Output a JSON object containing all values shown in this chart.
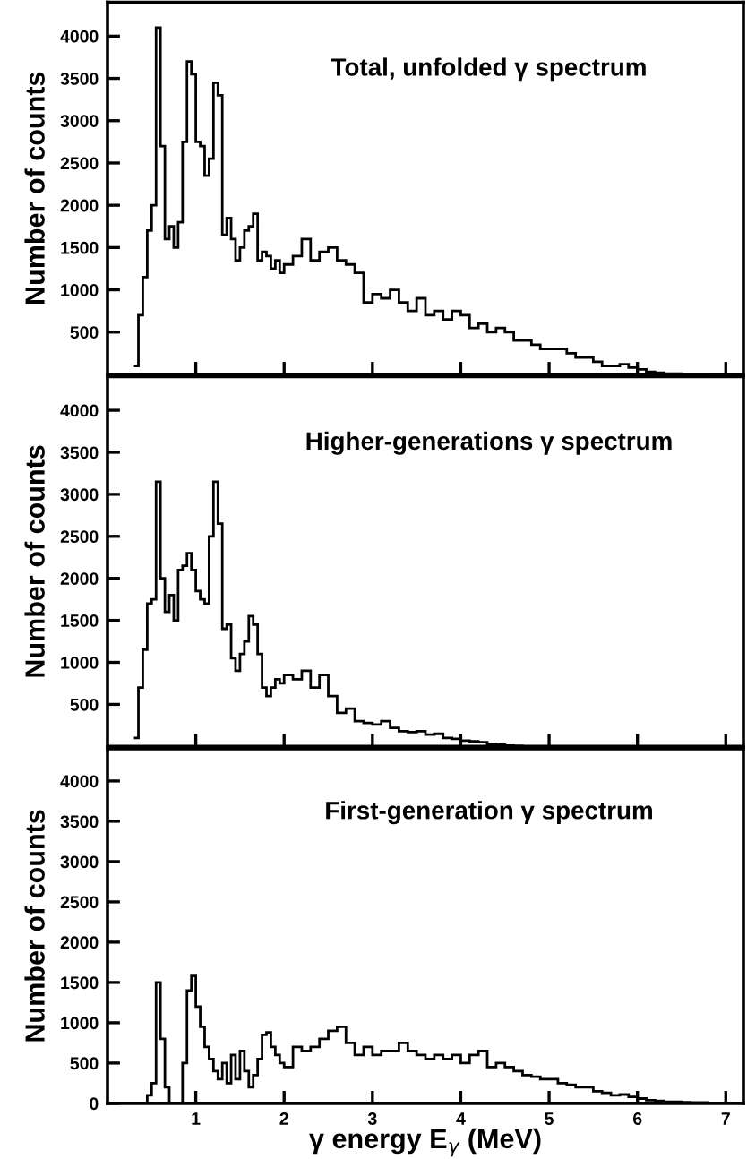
{
  "chart_data": [
    {
      "type": "histogram",
      "title": "Total, unfolded γ spectrum",
      "ylabel": "Number of counts",
      "color": "#000000",
      "xlim": [
        0,
        7.2
      ],
      "xticks": [
        1,
        2,
        3,
        4,
        5,
        6,
        7
      ],
      "ylim": [
        0,
        4400
      ],
      "yticks": [
        500,
        1000,
        1500,
        2000,
        2500,
        3000,
        3500,
        4000
      ],
      "tick_labels": "y",
      "bins": [
        0.3,
        0.35,
        0.4,
        0.45,
        0.5,
        0.55,
        0.6,
        0.65,
        0.7,
        0.75,
        0.8,
        0.85,
        0.9,
        0.95,
        1.0,
        1.05,
        1.1,
        1.15,
        1.2,
        1.25,
        1.3,
        1.35,
        1.4,
        1.45,
        1.5,
        1.55,
        1.6,
        1.65,
        1.7,
        1.75,
        1.8,
        1.85,
        1.9,
        1.95,
        2.0,
        2.1,
        2.2,
        2.3,
        2.4,
        2.5,
        2.6,
        2.7,
        2.8,
        2.9,
        3.0,
        3.1,
        3.2,
        3.3,
        3.4,
        3.5,
        3.6,
        3.7,
        3.8,
        3.9,
        4.0,
        4.1,
        4.2,
        4.3,
        4.4,
        4.5,
        4.6,
        4.7,
        4.8,
        4.9,
        5.0,
        5.1,
        5.2,
        5.3,
        5.4,
        5.5,
        5.6,
        5.7,
        5.8,
        5.9,
        6.0,
        6.1,
        6.2,
        6.3,
        6.4,
        6.5,
        6.6,
        6.7,
        6.8,
        6.9,
        7.0
      ],
      "values": [
        100,
        700,
        1150,
        1700,
        2000,
        4100,
        2700,
        1600,
        1750,
        1500,
        1800,
        2750,
        3700,
        3550,
        2750,
        2700,
        2350,
        2550,
        3450,
        3300,
        1650,
        1850,
        1600,
        1350,
        1500,
        1700,
        1750,
        1900,
        1350,
        1450,
        1400,
        1250,
        1350,
        1200,
        1300,
        1400,
        1600,
        1350,
        1450,
        1500,
        1350,
        1300,
        1200,
        850,
        950,
        900,
        1000,
        850,
        750,
        900,
        700,
        750,
        650,
        750,
        700,
        550,
        600,
        500,
        550,
        500,
        400,
        400,
        350,
        300,
        300,
        300,
        250,
        200,
        200,
        150,
        100,
        100,
        120,
        80,
        60,
        30,
        20,
        10,
        10,
        5,
        5,
        5,
        0,
        0
      ]
    },
    {
      "type": "histogram",
      "title": "Higher-generations γ spectrum",
      "ylabel": "Number of counts",
      "color": "#000000",
      "xlim": [
        0,
        7.2
      ],
      "xticks": [
        1,
        2,
        3,
        4,
        5,
        6,
        7
      ],
      "ylim": [
        0,
        4400
      ],
      "yticks": [
        500,
        1000,
        1500,
        2000,
        2500,
        3000,
        3500,
        4000
      ],
      "tick_labels": "y",
      "bins": [
        0.3,
        0.35,
        0.4,
        0.45,
        0.5,
        0.55,
        0.6,
        0.65,
        0.7,
        0.75,
        0.8,
        0.85,
        0.9,
        0.95,
        1.0,
        1.05,
        1.1,
        1.15,
        1.2,
        1.25,
        1.3,
        1.35,
        1.4,
        1.45,
        1.5,
        1.55,
        1.6,
        1.65,
        1.7,
        1.75,
        1.8,
        1.85,
        1.9,
        1.95,
        2.0,
        2.1,
        2.2,
        2.3,
        2.4,
        2.5,
        2.6,
        2.7,
        2.8,
        2.9,
        3.0,
        3.1,
        3.2,
        3.3,
        3.4,
        3.5,
        3.6,
        3.7,
        3.8,
        3.9,
        4.0,
        4.1,
        4.2,
        4.3,
        4.4,
        4.5,
        4.6,
        4.7,
        4.8,
        4.9,
        5.0,
        5.1,
        5.2,
        5.3,
        5.4,
        5.5,
        5.6,
        5.7,
        5.8,
        5.9,
        6.0,
        6.1,
        6.2,
        6.3,
        6.4,
        6.5,
        6.6,
        6.7,
        6.8,
        6.9,
        7.0
      ],
      "values": [
        100,
        700,
        1150,
        1700,
        1750,
        3150,
        2000,
        1600,
        1800,
        1500,
        2100,
        2150,
        2300,
        2100,
        1850,
        1750,
        1700,
        2500,
        3150,
        2650,
        1400,
        1450,
        1050,
        900,
        1100,
        1250,
        1550,
        1450,
        1100,
        700,
        600,
        700,
        800,
        750,
        850,
        800,
        900,
        700,
        850,
        600,
        400,
        450,
        300,
        280,
        260,
        300,
        220,
        180,
        170,
        180,
        140,
        150,
        100,
        90,
        70,
        60,
        50,
        30,
        20,
        10,
        5,
        0,
        0,
        0,
        0,
        0,
        0,
        0,
        0,
        0,
        0,
        0,
        0,
        0,
        0,
        0,
        0,
        0,
        0,
        0,
        0,
        0,
        0,
        0
      ]
    },
    {
      "type": "histogram",
      "title": "First-generation γ spectrum",
      "ylabel": "Number of counts",
      "xlabel": "γ energy E$_{γ}$ (MeV)",
      "color": "#000000",
      "xlim": [
        0,
        7.2
      ],
      "xticks": [
        1,
        2,
        3,
        4,
        5,
        6,
        7
      ],
      "ylim": [
        0,
        4400
      ],
      "yticks": [
        0,
        500,
        1000,
        1500,
        2000,
        2500,
        3000,
        3500,
        4000
      ],
      "bins": [
        0.3,
        0.35,
        0.4,
        0.45,
        0.5,
        0.55,
        0.6,
        0.65,
        0.7,
        0.75,
        0.8,
        0.85,
        0.9,
        0.95,
        1.0,
        1.05,
        1.1,
        1.15,
        1.2,
        1.25,
        1.3,
        1.35,
        1.4,
        1.45,
        1.5,
        1.55,
        1.6,
        1.65,
        1.7,
        1.75,
        1.8,
        1.85,
        1.9,
        1.95,
        2.0,
        2.1,
        2.2,
        2.3,
        2.4,
        2.5,
        2.6,
        2.7,
        2.8,
        2.9,
        3.0,
        3.1,
        3.2,
        3.3,
        3.4,
        3.5,
        3.6,
        3.7,
        3.8,
        3.9,
        4.0,
        4.1,
        4.2,
        4.3,
        4.4,
        4.5,
        4.6,
        4.7,
        4.8,
        4.9,
        5.0,
        5.1,
        5.2,
        5.3,
        5.4,
        5.5,
        5.6,
        5.7,
        5.8,
        5.9,
        6.0,
        6.1,
        6.2,
        6.3,
        6.4,
        6.5,
        6.6,
        6.7,
        6.8,
        6.9,
        7.0
      ],
      "values": [
        0,
        0,
        0,
        100,
        250,
        1500,
        800,
        200,
        0,
        0,
        0,
        500,
        1400,
        1580,
        1200,
        950,
        700,
        550,
        400,
        300,
        500,
        250,
        600,
        300,
        650,
        400,
        200,
        350,
        550,
        850,
        880,
        700,
        600,
        500,
        450,
        700,
        650,
        700,
        800,
        900,
        950,
        750,
        600,
        700,
        600,
        650,
        650,
        750,
        650,
        600,
        550,
        600,
        550,
        600,
        500,
        600,
        650,
        450,
        500,
        450,
        400,
        350,
        330,
        300,
        300,
        250,
        230,
        200,
        200,
        150,
        130,
        100,
        110,
        80,
        60,
        40,
        30,
        20,
        20,
        15,
        10,
        10,
        5,
        0
      ]
    }
  ]
}
